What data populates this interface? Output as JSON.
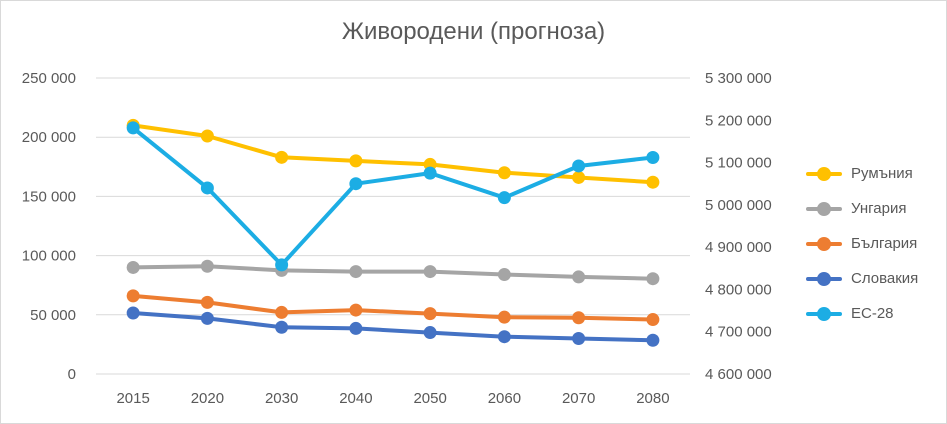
{
  "chart_data": {
    "type": "line",
    "title": "Живородени (прогноза)",
    "categories": [
      "2015",
      "2020",
      "2030",
      "2040",
      "2050",
      "2060",
      "2070",
      "2080"
    ],
    "y_left": {
      "ylim": [
        0,
        250000
      ],
      "ticks": [
        "0",
        "50 000",
        "100 000",
        "150 000",
        "200 000",
        "250 000"
      ],
      "tick_values": [
        0,
        50000,
        100000,
        150000,
        200000,
        250000
      ]
    },
    "y_right": {
      "ylim": [
        4600000,
        5300000
      ],
      "ticks": [
        "4 600 000",
        "4 700 000",
        "4 800 000",
        "4 900 000",
        "5 000 000",
        "5 100 000",
        "5 200 000",
        "5 300 000"
      ],
      "tick_values": [
        4600000,
        4700000,
        4800000,
        4900000,
        5000000,
        5100000,
        5200000,
        5300000
      ]
    },
    "grid": true,
    "legend_position": "right",
    "series": [
      {
        "name": "Румъния",
        "axis": "left",
        "color": "#ffc000",
        "values": [
          210000,
          201000,
          183000,
          180000,
          177000,
          170000,
          166000,
          162000
        ]
      },
      {
        "name": "Унгария",
        "axis": "left",
        "color": "#a5a5a5",
        "values": [
          90000,
          91000,
          87500,
          86500,
          86500,
          84000,
          82000,
          80500
        ]
      },
      {
        "name": "България",
        "axis": "left",
        "color": "#ed7d31",
        "values": [
          66000,
          60500,
          52000,
          54000,
          51000,
          48000,
          47500,
          46000
        ]
      },
      {
        "name": "Словакия",
        "axis": "left",
        "color": "#4472c4",
        "values": [
          51500,
          47000,
          39500,
          38500,
          35000,
          31500,
          30000,
          28500
        ]
      },
      {
        "name": "ЕС-28",
        "axis": "right",
        "color": "#1cade4",
        "values": [
          5182000,
          5040000,
          4858000,
          5050000,
          5075000,
          5017000,
          5092000,
          5112000
        ]
      }
    ]
  }
}
